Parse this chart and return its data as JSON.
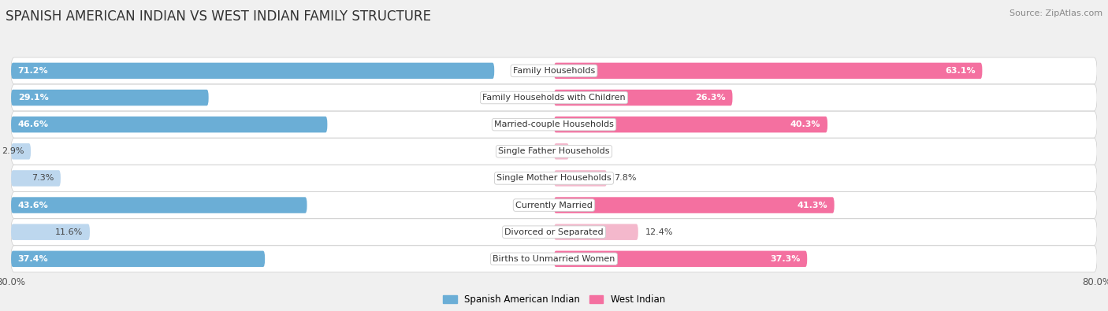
{
  "title": "SPANISH AMERICAN INDIAN VS WEST INDIAN FAMILY STRUCTURE",
  "source": "Source: ZipAtlas.com",
  "categories": [
    "Family Households",
    "Family Households with Children",
    "Married-couple Households",
    "Single Father Households",
    "Single Mother Households",
    "Currently Married",
    "Divorced or Separated",
    "Births to Unmarried Women"
  ],
  "left_values": [
    71.2,
    29.1,
    46.6,
    2.9,
    7.3,
    43.6,
    11.6,
    37.4
  ],
  "right_values": [
    63.1,
    26.3,
    40.3,
    2.2,
    7.8,
    41.3,
    12.4,
    37.3
  ],
  "left_label": "Spanish American Indian",
  "right_label": "West Indian",
  "left_color_strong": "#6BAED6",
  "left_color_light": "#BDD7EE",
  "right_color_strong": "#F470A0",
  "right_color_light": "#F4B8CC",
  "axis_max": 80.0,
  "background_color": "#f0f0f0",
  "row_bg_even": "#f8f8f8",
  "row_bg_odd": "#e8e8e8",
  "bar_height": 0.6,
  "title_fontsize": 12,
  "source_fontsize": 8,
  "label_fontsize": 8,
  "value_fontsize": 8,
  "threshold_strong": 20.0
}
